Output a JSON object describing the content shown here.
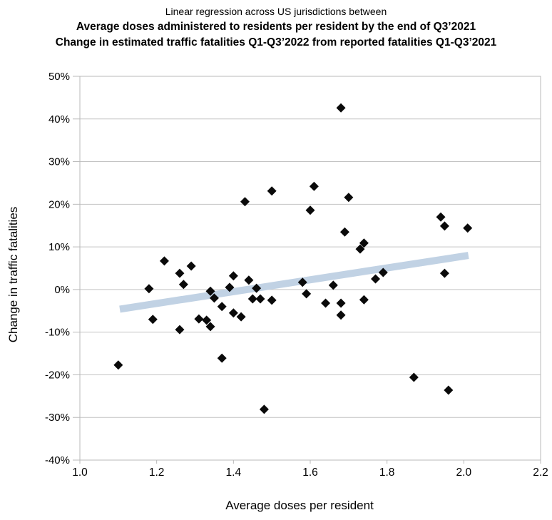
{
  "title": {
    "line1": "Linear regression across US jurisdictions between",
    "line2": "Average doses administered to residents per resident by the end of Q3’2021",
    "line3": "Change in estimated traffic fatalities Q1-Q3’2022 from reported fatalities Q1-Q3’2021"
  },
  "chart_data": {
    "type": "scatter",
    "title": "Linear regression across US jurisdictions between Average doses administered to residents per resident by the end of Q3’2021 and Change in estimated traffic fatalities Q1-Q3’2022 from reported fatalities Q1-Q3’2021",
    "xlabel": "Average doses per resident",
    "ylabel": "Change in traffic fatalities",
    "xlim": [
      1.0,
      2.2
    ],
    "ylim": [
      -40,
      50
    ],
    "grid": true,
    "legend": "none",
    "x_ticks": [
      "1.0",
      "1.2",
      "1.4",
      "1.6",
      "1.8",
      "2.0",
      "2.2"
    ],
    "y_ticks": [
      "50%",
      "40%",
      "30%",
      "20%",
      "10%",
      "0%",
      "-10%",
      "-20%",
      "-30%",
      "-40%"
    ],
    "marker": {
      "shape": "diamond",
      "color": "#0a0a0a",
      "size": 13
    },
    "points": [
      {
        "x": 1.1,
        "y": -17.7
      },
      {
        "x": 1.18,
        "y": 0.2
      },
      {
        "x": 1.19,
        "y": -7.0
      },
      {
        "x": 1.22,
        "y": 6.7
      },
      {
        "x": 1.26,
        "y": 3.8
      },
      {
        "x": 1.26,
        "y": -9.4
      },
      {
        "x": 1.27,
        "y": 1.2
      },
      {
        "x": 1.29,
        "y": 5.5
      },
      {
        "x": 1.31,
        "y": -6.9
      },
      {
        "x": 1.33,
        "y": -7.2
      },
      {
        "x": 1.34,
        "y": -8.7
      },
      {
        "x": 1.34,
        "y": -0.4
      },
      {
        "x": 1.35,
        "y": -2.0
      },
      {
        "x": 1.37,
        "y": -4.0
      },
      {
        "x": 1.37,
        "y": -16.1
      },
      {
        "x": 1.39,
        "y": 0.5
      },
      {
        "x": 1.4,
        "y": 3.2
      },
      {
        "x": 1.4,
        "y": -5.5
      },
      {
        "x": 1.42,
        "y": -6.4
      },
      {
        "x": 1.43,
        "y": 20.6
      },
      {
        "x": 1.44,
        "y": 2.2
      },
      {
        "x": 1.45,
        "y": -2.2
      },
      {
        "x": 1.46,
        "y": 0.3
      },
      {
        "x": 1.47,
        "y": -2.2
      },
      {
        "x": 1.48,
        "y": -28.1
      },
      {
        "x": 1.5,
        "y": 23.1
      },
      {
        "x": 1.5,
        "y": -2.5
      },
      {
        "x": 1.58,
        "y": 1.7
      },
      {
        "x": 1.59,
        "y": -1.0
      },
      {
        "x": 1.6,
        "y": 18.6
      },
      {
        "x": 1.61,
        "y": 24.2
      },
      {
        "x": 1.64,
        "y": -3.2
      },
      {
        "x": 1.66,
        "y": 1.0
      },
      {
        "x": 1.68,
        "y": -3.2
      },
      {
        "x": 1.68,
        "y": -6.0
      },
      {
        "x": 1.68,
        "y": 42.6
      },
      {
        "x": 1.69,
        "y": 13.5
      },
      {
        "x": 1.7,
        "y": 21.6
      },
      {
        "x": 1.73,
        "y": 9.5
      },
      {
        "x": 1.74,
        "y": 10.9
      },
      {
        "x": 1.74,
        "y": -2.4
      },
      {
        "x": 1.77,
        "y": 2.5
      },
      {
        "x": 1.79,
        "y": 4.0
      },
      {
        "x": 1.87,
        "y": -20.6
      },
      {
        "x": 1.94,
        "y": 17.0
      },
      {
        "x": 1.95,
        "y": 14.9
      },
      {
        "x": 1.95,
        "y": 3.8
      },
      {
        "x": 1.96,
        "y": -23.6
      },
      {
        "x": 2.01,
        "y": 14.4
      }
    ],
    "trendline": {
      "x1": 1.104,
      "y1": -4.6,
      "x2": 2.012,
      "y2": 8.0,
      "color": "#c1d2e4",
      "width": 10
    },
    "colors": {
      "grid": "#c3c3c3",
      "border": "#b9b9b9",
      "marker": "#0a0a0a",
      "text": "#000000"
    }
  }
}
